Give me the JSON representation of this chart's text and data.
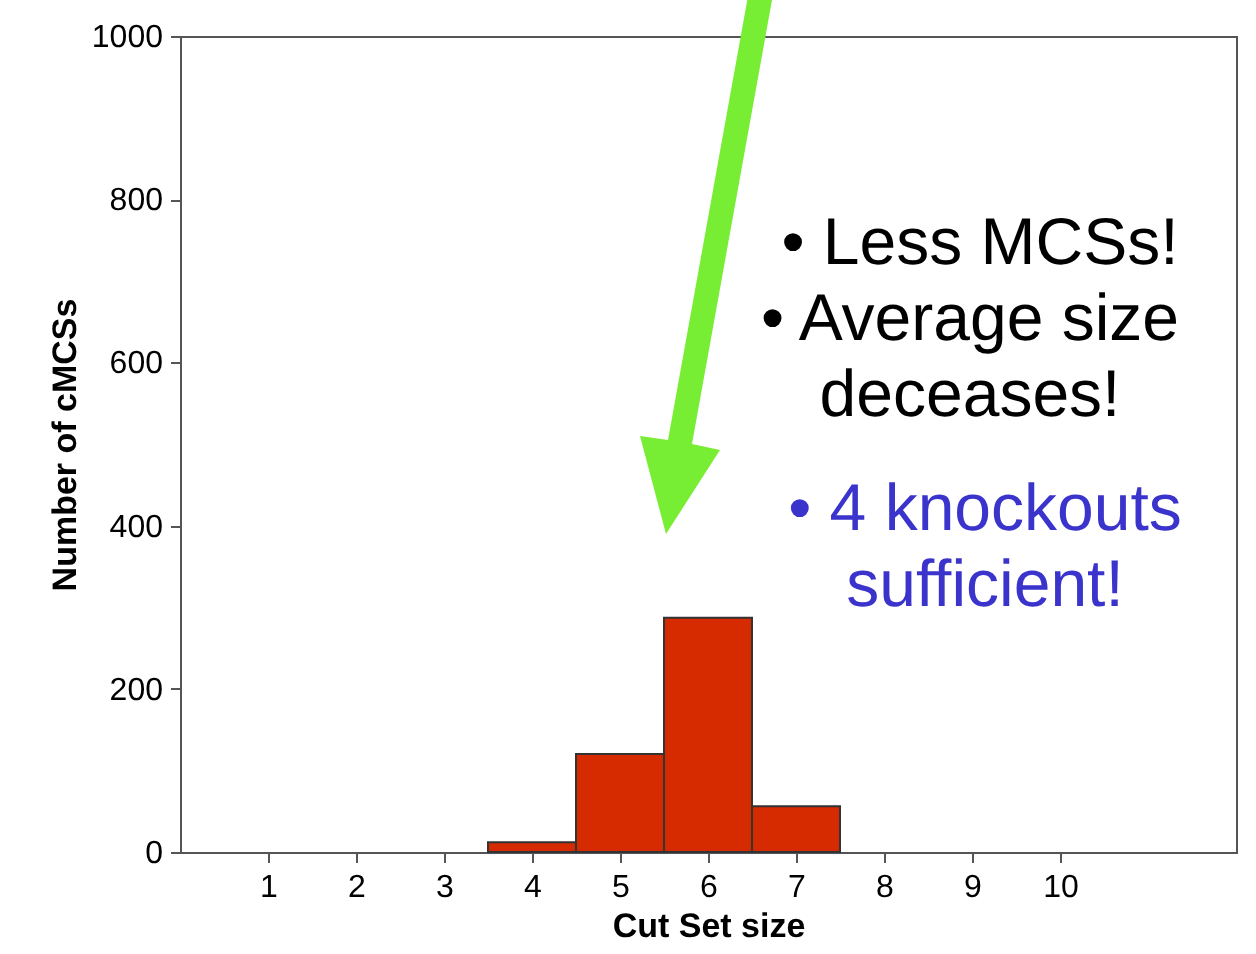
{
  "chart_data": {
    "type": "bar",
    "xlabel": "Cut Set size",
    "ylabel": "Number of cMCSs",
    "x": [
      4,
      5,
      6,
      7
    ],
    "values": [
      12,
      120,
      287,
      56
    ],
    "color": "#d62a00",
    "xlim": [
      0,
      12
    ],
    "xticks": [
      1,
      2,
      3,
      4,
      5,
      6,
      7,
      8,
      9,
      10
    ],
    "ylim": [
      0,
      1000
    ],
    "yticks": [
      0,
      200,
      400,
      600,
      800,
      1000
    ],
    "grid": false,
    "annotations": [
      "• Less MCSs!",
      "• Average size deceases!",
      "• 4 knockouts sufficient!"
    ]
  }
}
